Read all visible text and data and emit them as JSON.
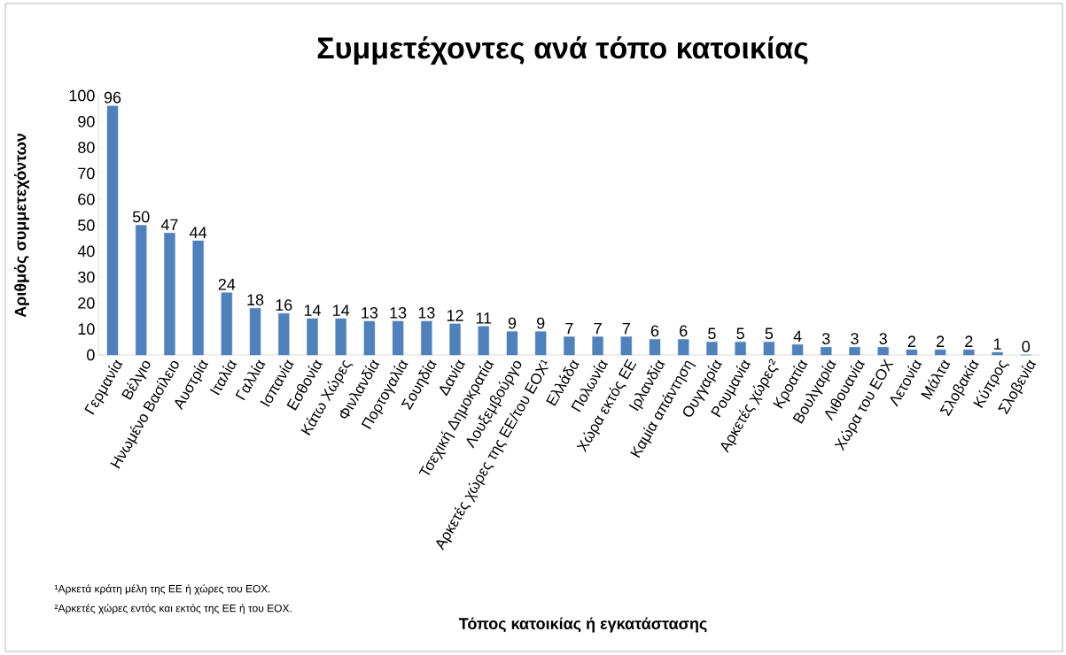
{
  "chart_data": {
    "type": "bar",
    "title": "Συμμετέχοντες ανά τόπο κατοικίας",
    "xlabel": "Τόπος κατοικίας ή εγκατάστασης",
    "ylabel": "Αριθμός συμμετεχόντων",
    "categories": [
      "Γερμανία",
      "Βέλγιο",
      "Ηνωμένο Βασίλειο",
      "Αυστρία",
      "Ιταλία",
      "Γαλλία",
      "Ισπανία",
      "Εσθονία",
      "Κάτω Χώρες",
      "Φινλανδία",
      "Πορτογαλία",
      "Σουηδία",
      "Δανία",
      "Τσεχική Δημοκρατία",
      "Λουξεμβούργο",
      "Αρκετές χώρες της ΕΕ/του ΕΟΧ¹",
      "Ελλάδα",
      "Πολωνία",
      "Χώρα εκτός ΕΕ",
      "Ιρλανδία",
      "Καμία απάντηση",
      "Ουγγαρία",
      "Ρουμανία",
      "Αρκετές χώρες²",
      "Κροατία",
      "Βουλγαρία",
      "Λιθουανία",
      "Χώρα του ΕΟΧ",
      "Λετονία",
      "Μάλτα",
      "Σλοβακία",
      "Κύπρος",
      "Σλοβενία"
    ],
    "values": [
      96,
      50,
      47,
      44,
      24,
      18,
      16,
      14,
      14,
      13,
      13,
      13,
      12,
      11,
      9,
      9,
      7,
      7,
      7,
      6,
      6,
      5,
      5,
      5,
      4,
      3,
      3,
      3,
      2,
      2,
      2,
      1,
      0
    ],
    "color": "#4f81bd",
    "data_labels": true,
    "grid": false,
    "ylim": [
      0,
      100
    ],
    "yticks": [
      0,
      10,
      20,
      30,
      40,
      50,
      60,
      70,
      80,
      90,
      100
    ],
    "annotations": [
      "¹Αρκετά κράτη μέλη της ΕΕ ή χώρες του ΕΟΧ.",
      "²Αρκετές χώρες εντός και εκτός της ΕΕ ή του ΕΟΧ."
    ]
  }
}
